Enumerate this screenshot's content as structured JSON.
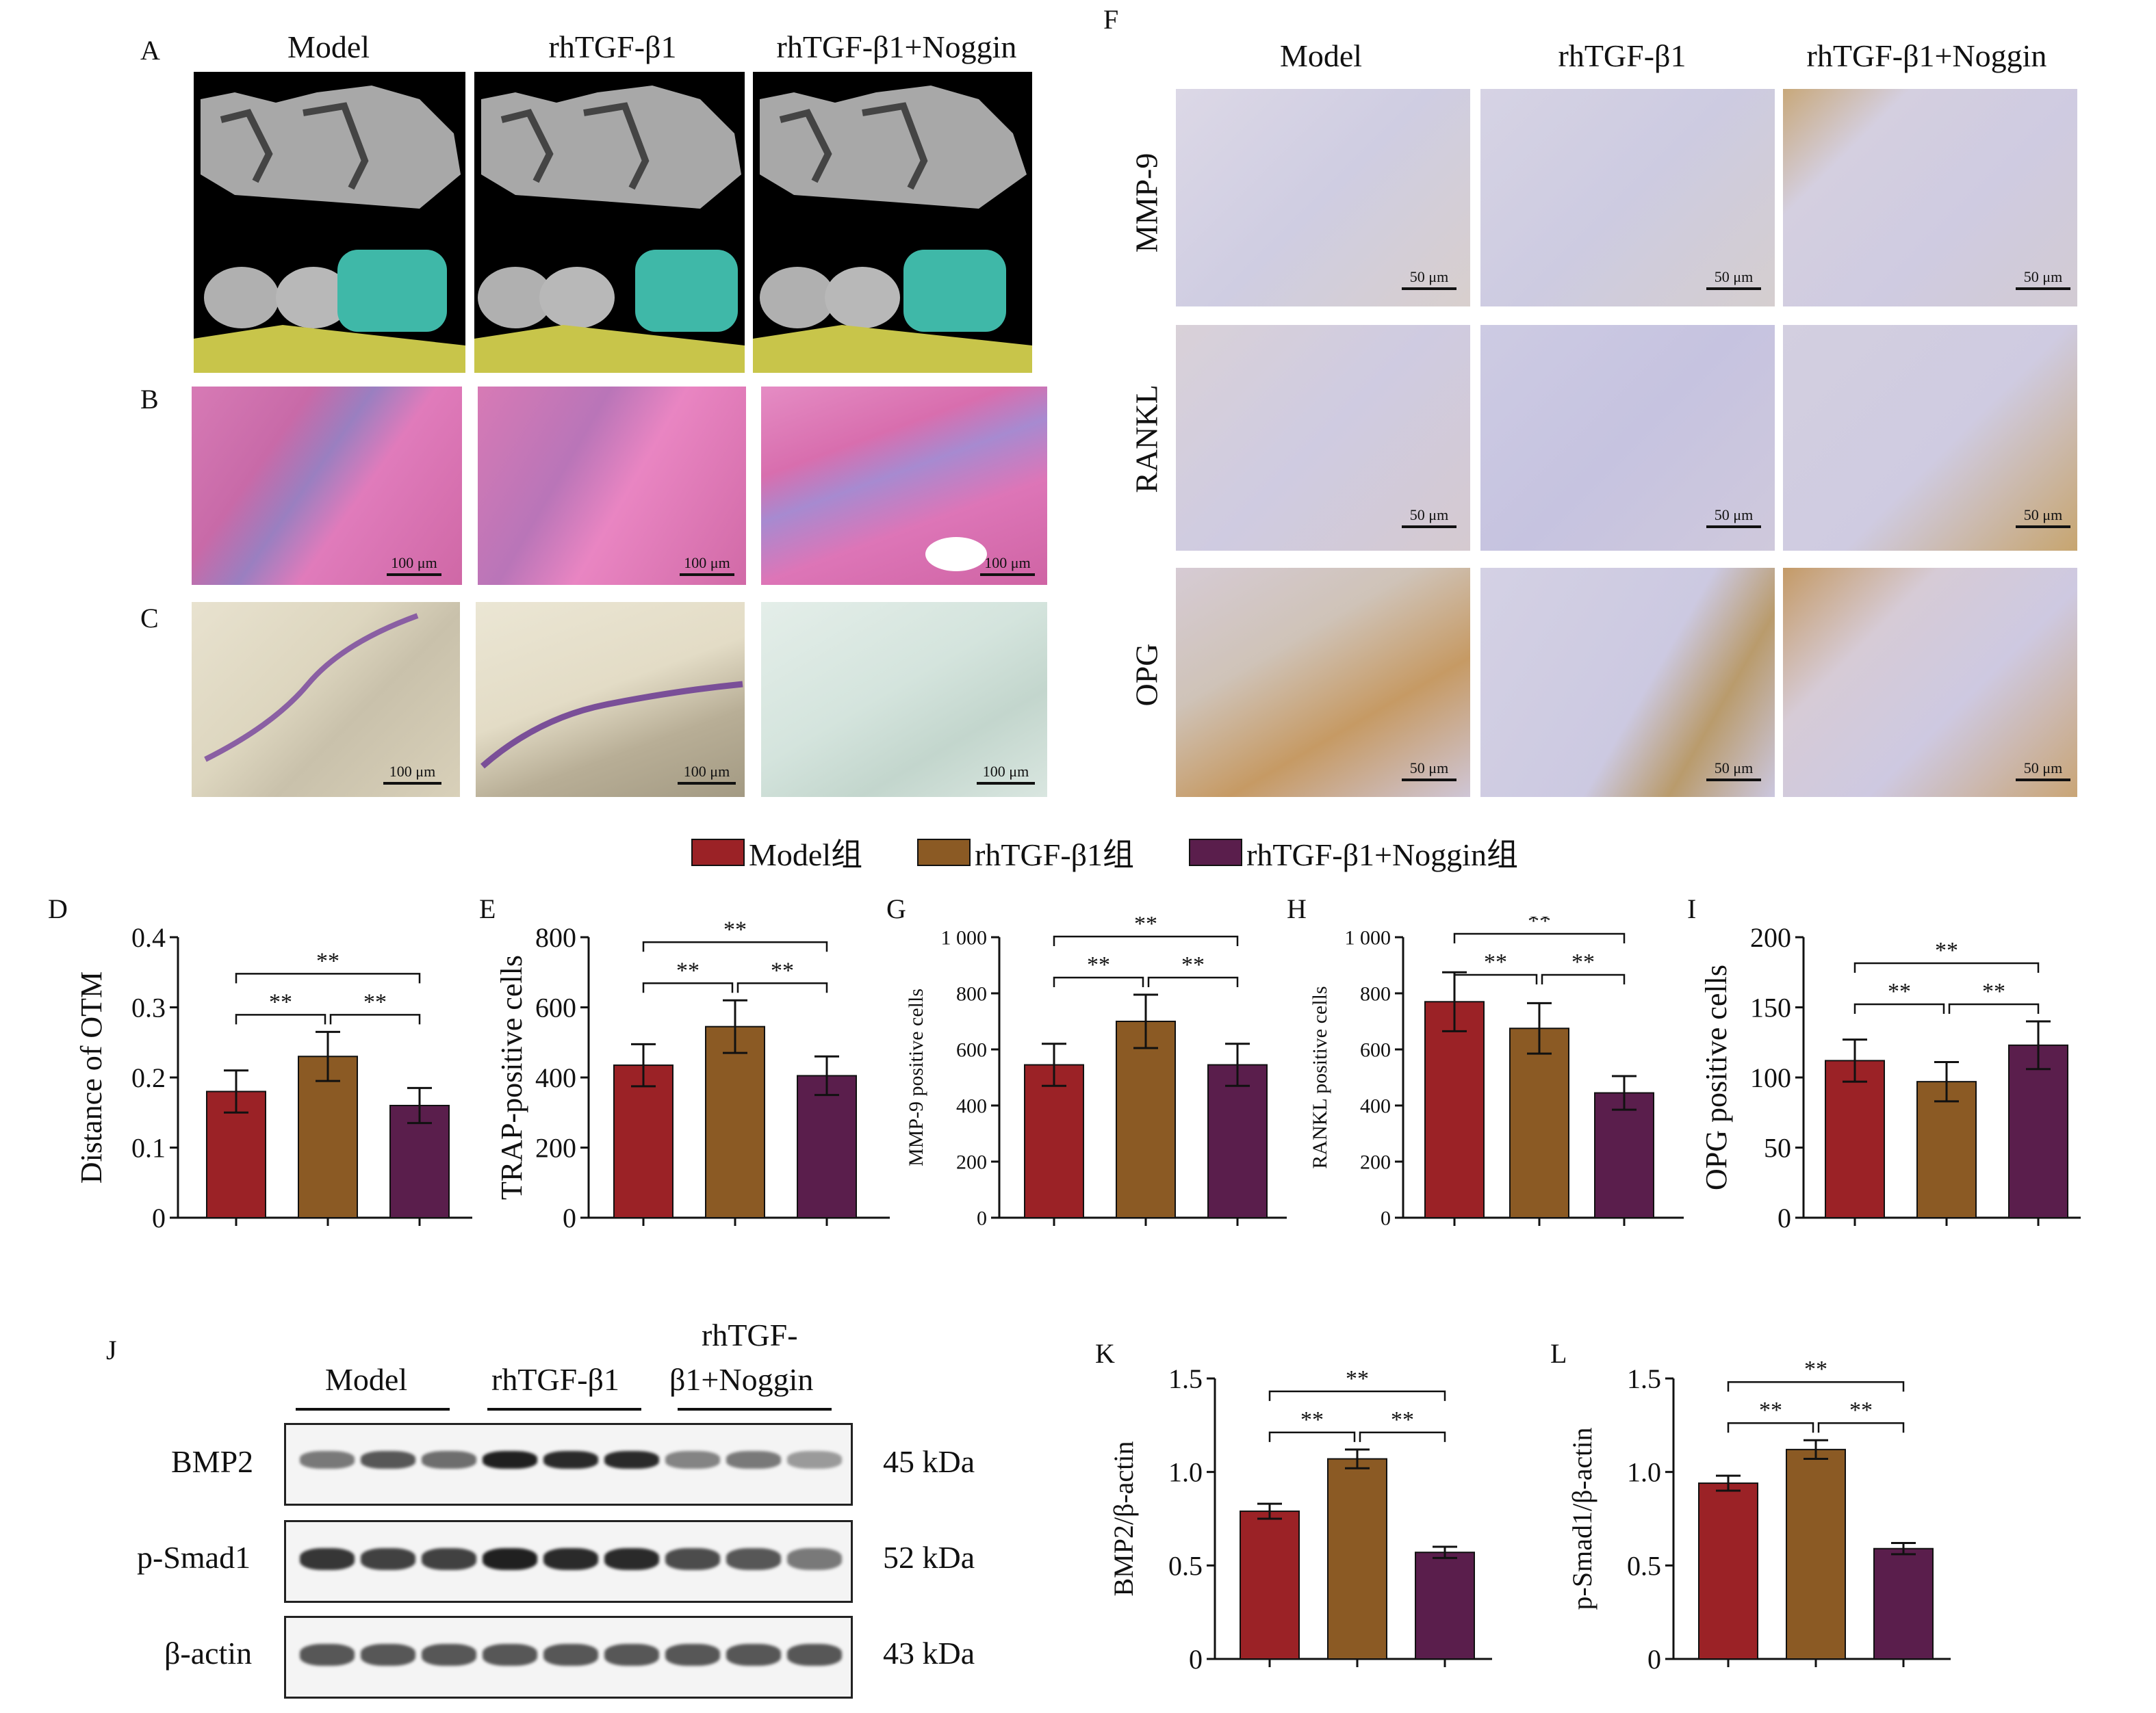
{
  "figure_panels": {
    "A": "A",
    "B": "B",
    "C": "C",
    "D": "D",
    "E": "E",
    "F": "F",
    "G": "G",
    "H": "H",
    "I": "I",
    "J": "J",
    "K": "K",
    "L": "L"
  },
  "groups": [
    "Model",
    "rhTGF-β1",
    "rhTGF-β1+Noggin"
  ],
  "colors": {
    "model": "#9b2226",
    "tgf": "#8b5a24",
    "noggin": "#5a1e4c"
  },
  "legend": [
    "Model组",
    "rhTGF-β1组",
    "rhTGF-β1+Noggin组"
  ],
  "ihc_rows": [
    "MMP-9",
    "RANKL",
    "OPG"
  ],
  "scale_100": "100 μm",
  "scale_50": "50 μm",
  "western": {
    "groups": [
      "Model",
      "rhTGF-β1",
      "rhTGF-",
      "β1+Noggin"
    ],
    "proteins": [
      "BMP2",
      "p-Smad1",
      "β-actin"
    ],
    "sizes": [
      "45 kDa",
      "52 kDa",
      "43 kDa"
    ]
  },
  "sig": "**",
  "chart_data": [
    {
      "panel": "D",
      "type": "bar",
      "categories": [
        "Model",
        "rhTGF-β1",
        "rhTGF-β1+Noggin"
      ],
      "values": [
        0.18,
        0.23,
        0.16
      ],
      "errors": [
        0.03,
        0.035,
        0.025
      ],
      "ylabel": "Distance of OTM",
      "ylim": [
        0,
        0.4
      ],
      "yticks": [
        "0",
        "0.1",
        "0.2",
        "0.3",
        "0.4"
      ]
    },
    {
      "panel": "E",
      "type": "bar",
      "categories": [
        "Model",
        "rhTGF-β1",
        "rhTGF-β1+Noggin"
      ],
      "values": [
        435,
        545,
        405
      ],
      "errors": [
        60,
        75,
        55
      ],
      "ylabel": "TRAP-positive cells",
      "ylim": [
        0,
        800
      ],
      "yticks": [
        "0",
        "200",
        "400",
        "600",
        "800"
      ]
    },
    {
      "panel": "G",
      "type": "bar",
      "categories": [
        "Model",
        "rhTGF-β1",
        "rhTGF-β1+Noggin"
      ],
      "values": [
        545,
        700,
        545
      ],
      "errors": [
        75,
        95,
        75
      ],
      "ylabel": "MMP-9 positive cells",
      "ylim": [
        0,
        1000
      ],
      "yticks": [
        "0",
        "200",
        "400",
        "600",
        "800",
        "1 000"
      ]
    },
    {
      "panel": "H",
      "type": "bar",
      "categories": [
        "Model",
        "rhTGF-β1",
        "rhTGF-β1+Noggin"
      ],
      "values": [
        770,
        675,
        445
      ],
      "errors": [
        105,
        90,
        60
      ],
      "ylabel": "RANKL positive cells",
      "ylim": [
        0,
        1000
      ],
      "yticks": [
        "0",
        "200",
        "400",
        "600",
        "800",
        "1 000"
      ]
    },
    {
      "panel": "I",
      "type": "bar",
      "categories": [
        "Model",
        "rhTGF-β1",
        "rhTGF-β1+Noggin"
      ],
      "values": [
        112,
        97,
        123
      ],
      "errors": [
        15,
        14,
        17
      ],
      "ylabel": "OPG positive cells",
      "ylim": [
        0,
        200
      ],
      "yticks": [
        "0",
        "50",
        "100",
        "150",
        "200"
      ]
    },
    {
      "panel": "K",
      "type": "bar",
      "categories": [
        "Model",
        "rhTGF-β1",
        "rhTGF-β1+Noggin"
      ],
      "values": [
        0.79,
        1.07,
        0.57
      ],
      "errors": [
        0.04,
        0.05,
        0.03
      ],
      "ylabel": "BMP2/β-actin",
      "ylim": [
        0,
        1.5
      ],
      "yticks": [
        "0",
        "0.5",
        "1.0",
        "1.5"
      ]
    },
    {
      "panel": "L",
      "type": "bar",
      "categories": [
        "Model",
        "rhTGF-β1",
        "rhTGF-β1+Noggin"
      ],
      "values": [
        0.94,
        1.12,
        0.59
      ],
      "errors": [
        0.04,
        0.05,
        0.03
      ],
      "ylabel": "p-Smad1/β-actin",
      "ylim": [
        0,
        1.5
      ],
      "yticks": [
        "0",
        "0.5",
        "1.0",
        "1.5"
      ]
    }
  ]
}
